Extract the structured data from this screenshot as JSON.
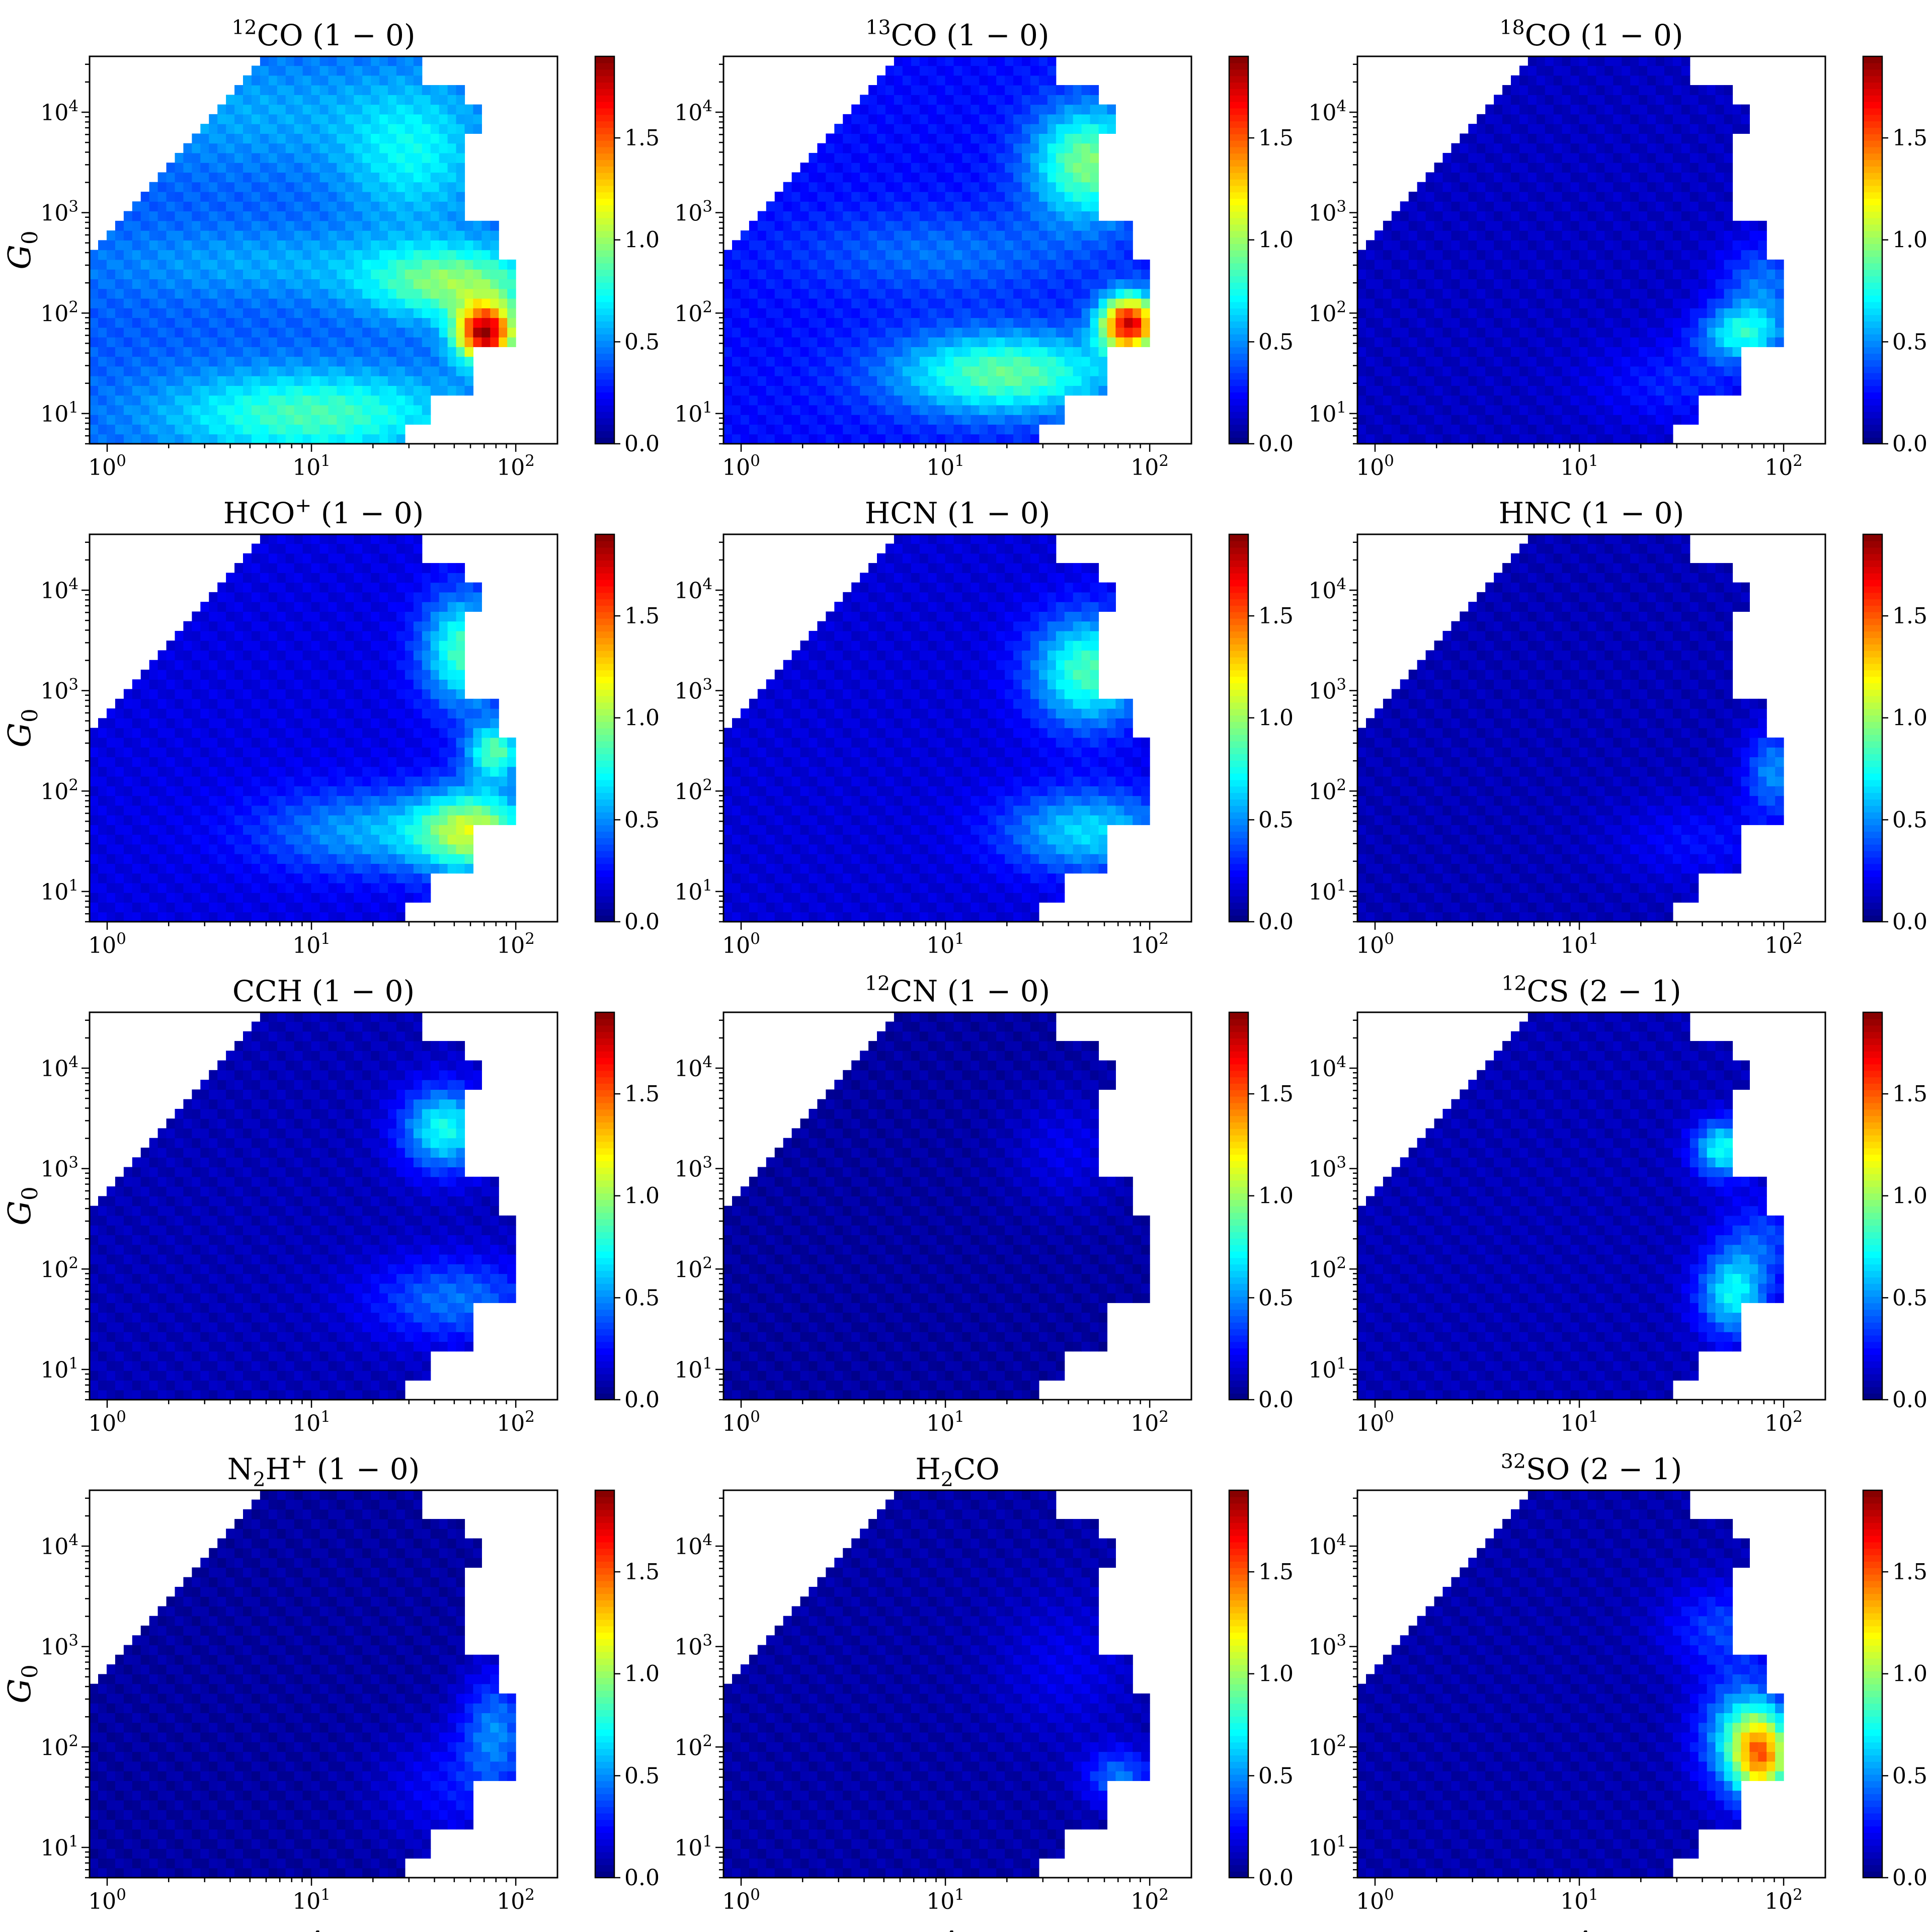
{
  "figure": {
    "xlabel": "A",
    "xlabel_sub": "V",
    "ylabel": "G",
    "ylabel_sub": "0",
    "colormap": "jet"
  },
  "chart_data": [
    {
      "type": "heatmap",
      "title": {
        "pre": "",
        "sup": "12",
        "main": "CO",
        "sub": "",
        "sup2": "",
        "trans": "(1 − 0)"
      },
      "xlim": [
        0.82,
        160
      ],
      "ylim": [
        5,
        36000
      ],
      "xscale": "log",
      "yscale": "log",
      "xticks": [
        1,
        10,
        100
      ],
      "yticks": [
        10,
        100,
        1000,
        10000
      ],
      "colorbar": {
        "range": [
          0.0,
          1.9
        ],
        "ticks": [
          0.0,
          0.5,
          1.0,
          1.5
        ]
      },
      "hotspots": [
        {
          "logA": 1.0,
          "logG": 1.0,
          "val": 0.85,
          "sx": 0.5,
          "sy": 0.3
        },
        {
          "logA": 1.85,
          "logG": 1.8,
          "val": 1.8,
          "sx": 0.1,
          "sy": 0.2
        },
        {
          "logA": 1.7,
          "logG": 2.3,
          "val": 0.95,
          "sx": 0.3,
          "sy": 0.25
        },
        {
          "logA": 0.8,
          "logG": 2.5,
          "val": 0.55,
          "sx": 0.6,
          "sy": 0.25
        },
        {
          "logA": 1.5,
          "logG": 3.6,
          "val": 0.7,
          "sx": 0.25,
          "sy": 0.5
        },
        {
          "logA": 0.7,
          "logG": 4.0,
          "val": 0.55,
          "sx": 0.5,
          "sy": 0.4
        }
      ],
      "base": 0.4
    },
    {
      "type": "heatmap",
      "title": {
        "pre": "",
        "sup": "13",
        "main": "CO",
        "sub": "",
        "sup2": "",
        "trans": "(1 − 0)"
      },
      "xlim": [
        0.82,
        160
      ],
      "ylim": [
        5,
        36000
      ],
      "xscale": "log",
      "yscale": "log",
      "xticks": [
        1,
        10,
        100
      ],
      "yticks": [
        10,
        100,
        1000,
        10000
      ],
      "colorbar": {
        "range": [
          0.0,
          1.9
        ],
        "ticks": [
          0.0,
          0.5,
          1.0,
          1.5
        ]
      },
      "hotspots": [
        {
          "logA": 1.3,
          "logG": 1.4,
          "val": 0.9,
          "sx": 0.4,
          "sy": 0.3
        },
        {
          "logA": 1.9,
          "logG": 1.9,
          "val": 1.7,
          "sx": 0.1,
          "sy": 0.2
        },
        {
          "logA": 1.7,
          "logG": 3.5,
          "val": 0.95,
          "sx": 0.2,
          "sy": 0.4
        },
        {
          "logA": 1.0,
          "logG": 2.6,
          "val": 0.45,
          "sx": 0.5,
          "sy": 0.3
        }
      ],
      "base": 0.25
    },
    {
      "type": "heatmap",
      "title": {
        "pre": "C",
        "sup": "18",
        "main": "O",
        "sub": "",
        "sup2": "",
        "trans": "(1 − 0)"
      },
      "xlim": [
        0.82,
        160
      ],
      "ylim": [
        5,
        36000
      ],
      "xscale": "log",
      "yscale": "log",
      "xticks": [
        1,
        10,
        100
      ],
      "yticks": [
        10,
        100,
        1000,
        10000
      ],
      "colorbar": {
        "range": [
          0.0,
          1.9
        ],
        "ticks": [
          0.0,
          0.5,
          1.0,
          1.5
        ]
      },
      "hotspots": [
        {
          "logA": 1.8,
          "logG": 1.8,
          "val": 0.7,
          "sx": 0.15,
          "sy": 0.2
        },
        {
          "logA": 1.9,
          "logG": 2.3,
          "val": 0.45,
          "sx": 0.15,
          "sy": 0.3
        },
        {
          "logA": 1.5,
          "logG": 1.3,
          "val": 0.3,
          "sx": 0.3,
          "sy": 0.3
        }
      ],
      "base": 0.12
    },
    {
      "type": "heatmap",
      "title": {
        "pre": "",
        "sup": "",
        "main": "HCO",
        "sub": "",
        "sup2": "+",
        "trans": "(1 − 0)"
      },
      "xlim": [
        0.82,
        160
      ],
      "ylim": [
        5,
        36000
      ],
      "xscale": "log",
      "yscale": "log",
      "xticks": [
        1,
        10,
        100
      ],
      "yticks": [
        10,
        100,
        1000,
        10000
      ],
      "colorbar": {
        "range": [
          0.0,
          1.9
        ],
        "ticks": [
          0.0,
          0.5,
          1.0,
          1.5
        ]
      },
      "hotspots": [
        {
          "logA": 1.8,
          "logG": 1.6,
          "val": 0.95,
          "sx": 0.2,
          "sy": 0.3
        },
        {
          "logA": 1.75,
          "logG": 3.4,
          "val": 0.85,
          "sx": 0.15,
          "sy": 0.4
        },
        {
          "logA": 1.9,
          "logG": 2.4,
          "val": 0.85,
          "sx": 0.1,
          "sy": 0.2
        },
        {
          "logA": 1.3,
          "logG": 1.6,
          "val": 0.55,
          "sx": 0.4,
          "sy": 0.3
        }
      ],
      "base": 0.18
    },
    {
      "type": "heatmap",
      "title": {
        "pre": "",
        "sup": "",
        "main": "HCN",
        "sub": "",
        "sup2": "",
        "trans": "(1 − 0)"
      },
      "xlim": [
        0.82,
        160
      ],
      "ylim": [
        5,
        36000
      ],
      "xscale": "log",
      "yscale": "log",
      "xticks": [
        1,
        10,
        100
      ],
      "yticks": [
        10,
        100,
        1000,
        10000
      ],
      "colorbar": {
        "range": [
          0.0,
          1.9
        ],
        "ticks": [
          0.0,
          0.5,
          1.0,
          1.5
        ]
      },
      "hotspots": [
        {
          "logA": 1.7,
          "logG": 3.2,
          "val": 0.85,
          "sx": 0.2,
          "sy": 0.4
        },
        {
          "logA": 1.7,
          "logG": 1.6,
          "val": 0.65,
          "sx": 0.3,
          "sy": 0.3
        }
      ],
      "base": 0.16
    },
    {
      "type": "heatmap",
      "title": {
        "pre": "",
        "sup": "",
        "main": "HNC",
        "sub": "",
        "sup2": "",
        "trans": "(1 − 0)"
      },
      "xlim": [
        0.82,
        160
      ],
      "ylim": [
        5,
        36000
      ],
      "xscale": "log",
      "yscale": "log",
      "xticks": [
        1,
        10,
        100
      ],
      "yticks": [
        10,
        100,
        1000,
        10000
      ],
      "colorbar": {
        "range": [
          0.0,
          1.9
        ],
        "ticks": [
          0.0,
          0.5,
          1.0,
          1.5
        ]
      },
      "hotspots": [
        {
          "logA": 1.95,
          "logG": 2.2,
          "val": 0.5,
          "sx": 0.1,
          "sy": 0.3
        },
        {
          "logA": 1.6,
          "logG": 1.5,
          "val": 0.25,
          "sx": 0.3,
          "sy": 0.3
        }
      ],
      "base": 0.1
    },
    {
      "type": "heatmap",
      "title": {
        "pre": "",
        "sup": "",
        "main": "CCH",
        "sub": "",
        "sup2": "",
        "trans": "(1 − 0)"
      },
      "xlim": [
        0.82,
        160
      ],
      "ylim": [
        5,
        36000
      ],
      "xscale": "log",
      "yscale": "log",
      "xticks": [
        1,
        10,
        100
      ],
      "yticks": [
        10,
        100,
        1000,
        10000
      ],
      "colorbar": {
        "range": [
          0.0,
          1.9
        ],
        "ticks": [
          0.0,
          0.5,
          1.0,
          1.5
        ]
      },
      "hotspots": [
        {
          "logA": 1.65,
          "logG": 3.4,
          "val": 0.75,
          "sx": 0.15,
          "sy": 0.3
        },
        {
          "logA": 1.7,
          "logG": 1.7,
          "val": 0.45,
          "sx": 0.3,
          "sy": 0.3
        }
      ],
      "base": 0.1
    },
    {
      "type": "heatmap",
      "title": {
        "pre": "",
        "sup": "12",
        "main": "CN",
        "sub": "",
        "sup2": "",
        "trans": "(1 − 0)"
      },
      "xlim": [
        0.82,
        160
      ],
      "ylim": [
        5,
        36000
      ],
      "xscale": "log",
      "yscale": "log",
      "xticks": [
        1,
        10,
        100
      ],
      "yticks": [
        10,
        100,
        1000,
        10000
      ],
      "colorbar": {
        "range": [
          0.0,
          1.9
        ],
        "ticks": [
          0.0,
          0.5,
          1.0,
          1.5
        ]
      },
      "hotspots": [
        {
          "logA": 1.6,
          "logG": 3.2,
          "val": 0.2,
          "sx": 0.2,
          "sy": 0.4
        }
      ],
      "base": 0.06
    },
    {
      "type": "heatmap",
      "title": {
        "pre": "",
        "sup": "12",
        "main": "CS",
        "sub": "",
        "sup2": "",
        "trans": "(2 − 1)"
      },
      "xlim": [
        0.82,
        160
      ],
      "ylim": [
        5,
        36000
      ],
      "xscale": "log",
      "yscale": "log",
      "xticks": [
        1,
        10,
        100
      ],
      "yticks": [
        10,
        100,
        1000,
        10000
      ],
      "colorbar": {
        "range": [
          0.0,
          1.9
        ],
        "ticks": [
          0.0,
          0.5,
          1.0,
          1.5
        ]
      },
      "hotspots": [
        {
          "logA": 1.7,
          "logG": 3.2,
          "val": 0.75,
          "sx": 0.1,
          "sy": 0.2
        },
        {
          "logA": 1.75,
          "logG": 1.75,
          "val": 0.7,
          "sx": 0.12,
          "sy": 0.3
        },
        {
          "logA": 1.9,
          "logG": 2.3,
          "val": 0.35,
          "sx": 0.15,
          "sy": 0.3
        }
      ],
      "base": 0.1
    },
    {
      "type": "heatmap",
      "title": {
        "pre": "N",
        "sup": "",
        "main": "H",
        "sub": "2",
        "sup2": "+",
        "trans": "(1 − 0)"
      },
      "xlim": [
        0.82,
        160
      ],
      "ylim": [
        5,
        36000
      ],
      "xscale": "log",
      "yscale": "log",
      "xticks": [
        1,
        10,
        100
      ],
      "yticks": [
        10,
        100,
        1000,
        10000
      ],
      "colorbar": {
        "range": [
          0.0,
          1.9
        ],
        "ticks": [
          0.0,
          0.5,
          1.0,
          1.5
        ]
      },
      "hotspots": [
        {
          "logA": 1.9,
          "logG": 2.2,
          "val": 0.45,
          "sx": 0.12,
          "sy": 0.4
        },
        {
          "logA": 1.7,
          "logG": 1.6,
          "val": 0.25,
          "sx": 0.25,
          "sy": 0.4
        }
      ],
      "base": 0.06
    },
    {
      "type": "heatmap",
      "title": {
        "pre": "H",
        "sup": "",
        "main": "CO",
        "sub": "2",
        "sup2": "",
        "trans": ""
      },
      "xlim": [
        0.82,
        160
      ],
      "ylim": [
        5,
        36000
      ],
      "xscale": "log",
      "yscale": "log",
      "xticks": [
        1,
        10,
        100
      ],
      "yticks": [
        10,
        100,
        1000,
        10000
      ],
      "colorbar": {
        "range": [
          0.0,
          1.9
        ],
        "ticks": [
          0.0,
          0.5,
          1.0,
          1.5
        ]
      },
      "hotspots": [
        {
          "logA": 1.85,
          "logG": 1.7,
          "val": 0.45,
          "sx": 0.12,
          "sy": 0.2
        },
        {
          "logA": 1.6,
          "logG": 2.8,
          "val": 0.2,
          "sx": 0.25,
          "sy": 0.5
        }
      ],
      "base": 0.07
    },
    {
      "type": "heatmap",
      "title": {
        "pre": "",
        "sup": "32",
        "main": "SO",
        "sub": "",
        "sup2": "",
        "trans": "(2 − 1)"
      },
      "xlim": [
        0.82,
        160
      ],
      "ylim": [
        5,
        36000
      ],
      "xscale": "log",
      "yscale": "log",
      "xticks": [
        1,
        10,
        100
      ],
      "yticks": [
        10,
        100,
        1000,
        10000
      ],
      "colorbar": {
        "range": [
          0.0,
          1.9
        ],
        "ticks": [
          0.0,
          0.5,
          1.0,
          1.5
        ]
      },
      "hotspots": [
        {
          "logA": 1.9,
          "logG": 1.9,
          "val": 1.05,
          "sx": 0.1,
          "sy": 0.3
        },
        {
          "logA": 1.8,
          "logG": 2.1,
          "val": 0.7,
          "sx": 0.15,
          "sy": 0.4
        },
        {
          "logA": 1.7,
          "logG": 3.2,
          "val": 0.35,
          "sx": 0.2,
          "sy": 0.3
        }
      ],
      "base": 0.08
    }
  ]
}
